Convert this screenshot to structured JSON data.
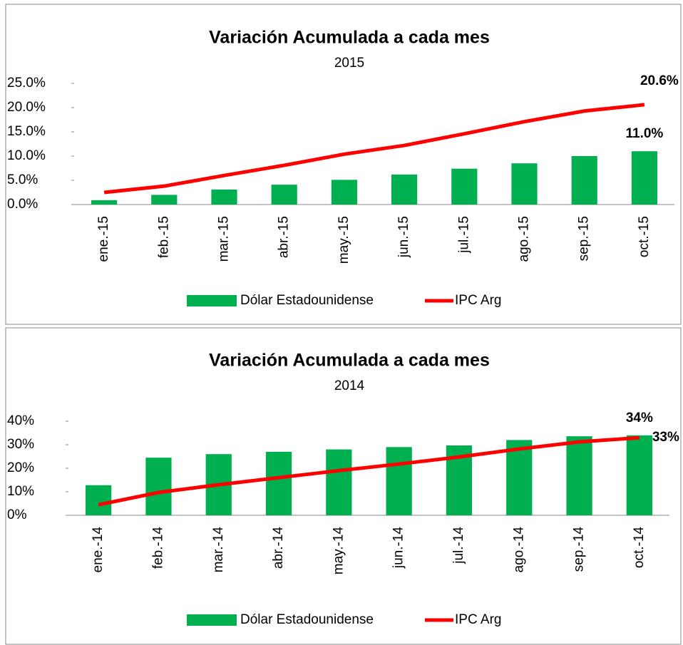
{
  "chart_data": [
    {
      "type": "bar",
      "title": "Variación Acumulada a cada mes",
      "subtitle": "2015",
      "categories": [
        "ene.-15",
        "feb.-15",
        "mar.-15",
        "abr.-15",
        "may.-15",
        "jun.-15",
        "jul.-15",
        "ago.-15",
        "sep.-15",
        "oct.-15"
      ],
      "series": [
        {
          "name": "Dólar Estadounidense",
          "type": "bar",
          "color": "#00b050",
          "values": [
            0.9,
            2.0,
            3.1,
            4.1,
            5.1,
            6.2,
            7.4,
            8.5,
            10.0,
            11.0
          ],
          "value_labels": [
            null,
            null,
            null,
            null,
            null,
            null,
            null,
            null,
            null,
            "11.0%"
          ]
        },
        {
          "name": "IPC Arg",
          "type": "line",
          "color": "#ff0000",
          "values": [
            2.5,
            3.8,
            6.0,
            8.1,
            10.4,
            12.2,
            14.6,
            17.1,
            19.3,
            20.6
          ],
          "value_labels": [
            null,
            null,
            null,
            null,
            null,
            null,
            null,
            null,
            null,
            "20.6%"
          ]
        }
      ],
      "ylim": [
        0,
        25
      ],
      "yticks": [
        {
          "value": 0,
          "label": "0.0%"
        },
        {
          "value": 5,
          "label": "5.0%"
        },
        {
          "value": 10,
          "label": "10.0%"
        },
        {
          "value": 15,
          "label": "15.0%"
        },
        {
          "value": 20,
          "label": "20.0%"
        },
        {
          "value": 25,
          "label": "25.0%"
        }
      ],
      "legend": "bottom"
    },
    {
      "type": "bar",
      "title": "Variación Acumulada a cada mes",
      "subtitle": "2014",
      "categories": [
        "ene.-14",
        "feb.-14",
        "mar.-14",
        "abr.-14",
        "may.-14",
        "jun.-14",
        "jul.-14",
        "ago.-14",
        "sep.-14",
        "oct.-14"
      ],
      "series": [
        {
          "name": "Dólar Estadounidense",
          "type": "bar",
          "color": "#00b050",
          "values": [
            12.8,
            24.5,
            26,
            27,
            28,
            29,
            29.7,
            32,
            33.6,
            34
          ],
          "value_labels": [
            null,
            null,
            null,
            null,
            null,
            null,
            null,
            null,
            null,
            "34%"
          ]
        },
        {
          "name": "IPC Arg",
          "type": "line",
          "color": "#ff0000",
          "values": [
            4.5,
            9.7,
            13,
            16,
            19,
            21.8,
            24.8,
            28.2,
            31.2,
            33
          ],
          "value_labels": [
            null,
            null,
            null,
            null,
            null,
            null,
            null,
            null,
            null,
            "33%"
          ]
        }
      ],
      "ylim": [
        0,
        40
      ],
      "yticks": [
        {
          "value": 0,
          "label": "0%"
        },
        {
          "value": 10,
          "label": "10%"
        },
        {
          "value": 20,
          "label": "20%"
        },
        {
          "value": 30,
          "label": "30%"
        },
        {
          "value": 40,
          "label": "40%"
        }
      ],
      "legend": "bottom"
    }
  ]
}
